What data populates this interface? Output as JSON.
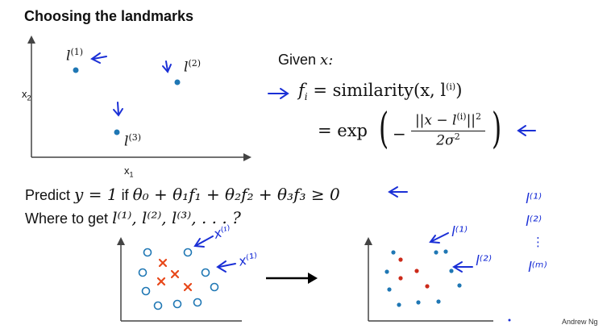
{
  "slide": {
    "title": "Choosing the landmarks",
    "top_plot": {
      "y_axis_label": "x",
      "y_axis_sub": "2",
      "x_axis_label": "x",
      "x_axis_sub": "1",
      "landmarks": [
        {
          "label": "l",
          "sup": "(1)"
        },
        {
          "label": "l",
          "sup": "(2)"
        },
        {
          "label": "l",
          "sup": "(3)"
        }
      ]
    },
    "given": {
      "given_label": "Given",
      "given_var": "x:",
      "f_line": "f",
      "f_sub": "i",
      "f_eq": "= similarity(x, l",
      "f_sup": "(i)",
      "f_close": ")",
      "exp_prefix": "= exp",
      "numerator": "||x − l",
      "numerator_sup": "(i)",
      "numerator_close": "||",
      "numerator_sq": "2",
      "denominator": "2σ",
      "denominator_sq": "2"
    },
    "predict": {
      "label": "Predict",
      "eq": "y = 1",
      "if_word": "if",
      "condition": "θ₀ + θ₁f₁ + θ₂f₂ + θ₃f₃ ≥ 0"
    },
    "where": {
      "label": "Where to get",
      "landmarks": "l⁽¹⁾, l⁽²⁾, l⁽³⁾, . . . ?"
    },
    "handwritten": {
      "x1": "x⁽¹⁾",
      "x2": "x⁽ᶦ⁾",
      "l1": "l⁽¹⁾",
      "l2": "l⁽²⁾",
      "list_l1": "l⁽¹⁾",
      "list_l2": "l⁽²⁾",
      "list_dots": "⋮",
      "list_lm": "l⁽ᵐ⁾"
    },
    "credit": "Andrew Ng",
    "colors": {
      "ink_blue": "#1a2fd6",
      "point_blue": "#1f77b4",
      "cross_red": "#e8481a",
      "dot_red": "#cc2a1a",
      "axis": "#444444"
    }
  }
}
